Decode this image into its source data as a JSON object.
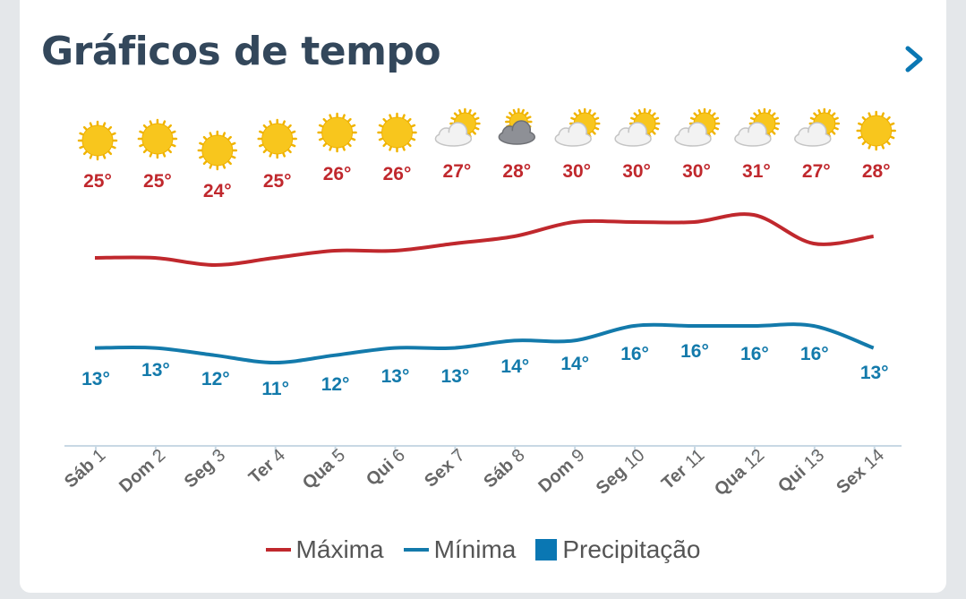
{
  "header": {
    "title": "Gráficos de tempo",
    "next_icon": "chevron-right-icon"
  },
  "colors": {
    "max": "#c0282d",
    "min": "#137aab",
    "precip": "#0a77b3",
    "title": "#33475b"
  },
  "chart_data": {
    "type": "line",
    "categories": [
      "Sáb 1",
      "Dom 2",
      "Seg 3",
      "Ter 4",
      "Qua 5",
      "Qui 6",
      "Sex 7",
      "Sáb 8",
      "Dom 9",
      "Seg 10",
      "Ter 11",
      "Qua 12",
      "Qui 13",
      "Sex 14"
    ],
    "weather_icons": [
      "sun-icon",
      "sun-icon",
      "sun-icon",
      "sun-icon",
      "sun-icon",
      "sun-icon",
      "partly-cloudy-icon",
      "cloudy-icon",
      "partly-cloudy-icon",
      "partly-cloudy-icon",
      "partly-cloudy-icon",
      "partly-cloudy-icon",
      "partly-cloudy-icon",
      "sun-icon"
    ],
    "series": [
      {
        "name": "Máxima",
        "values": [
          25,
          25,
          24,
          25,
          26,
          26,
          27,
          28,
          30,
          30,
          30,
          31,
          27,
          28
        ]
      },
      {
        "name": "Mínima",
        "values": [
          13,
          13,
          12,
          11,
          12,
          13,
          13,
          14,
          14,
          16,
          16,
          16,
          16,
          13
        ]
      }
    ],
    "legend": [
      "Máxima",
      "Mínima",
      "Precipitação"
    ],
    "legend_position": "bottom",
    "unit": "°",
    "grid": false
  }
}
